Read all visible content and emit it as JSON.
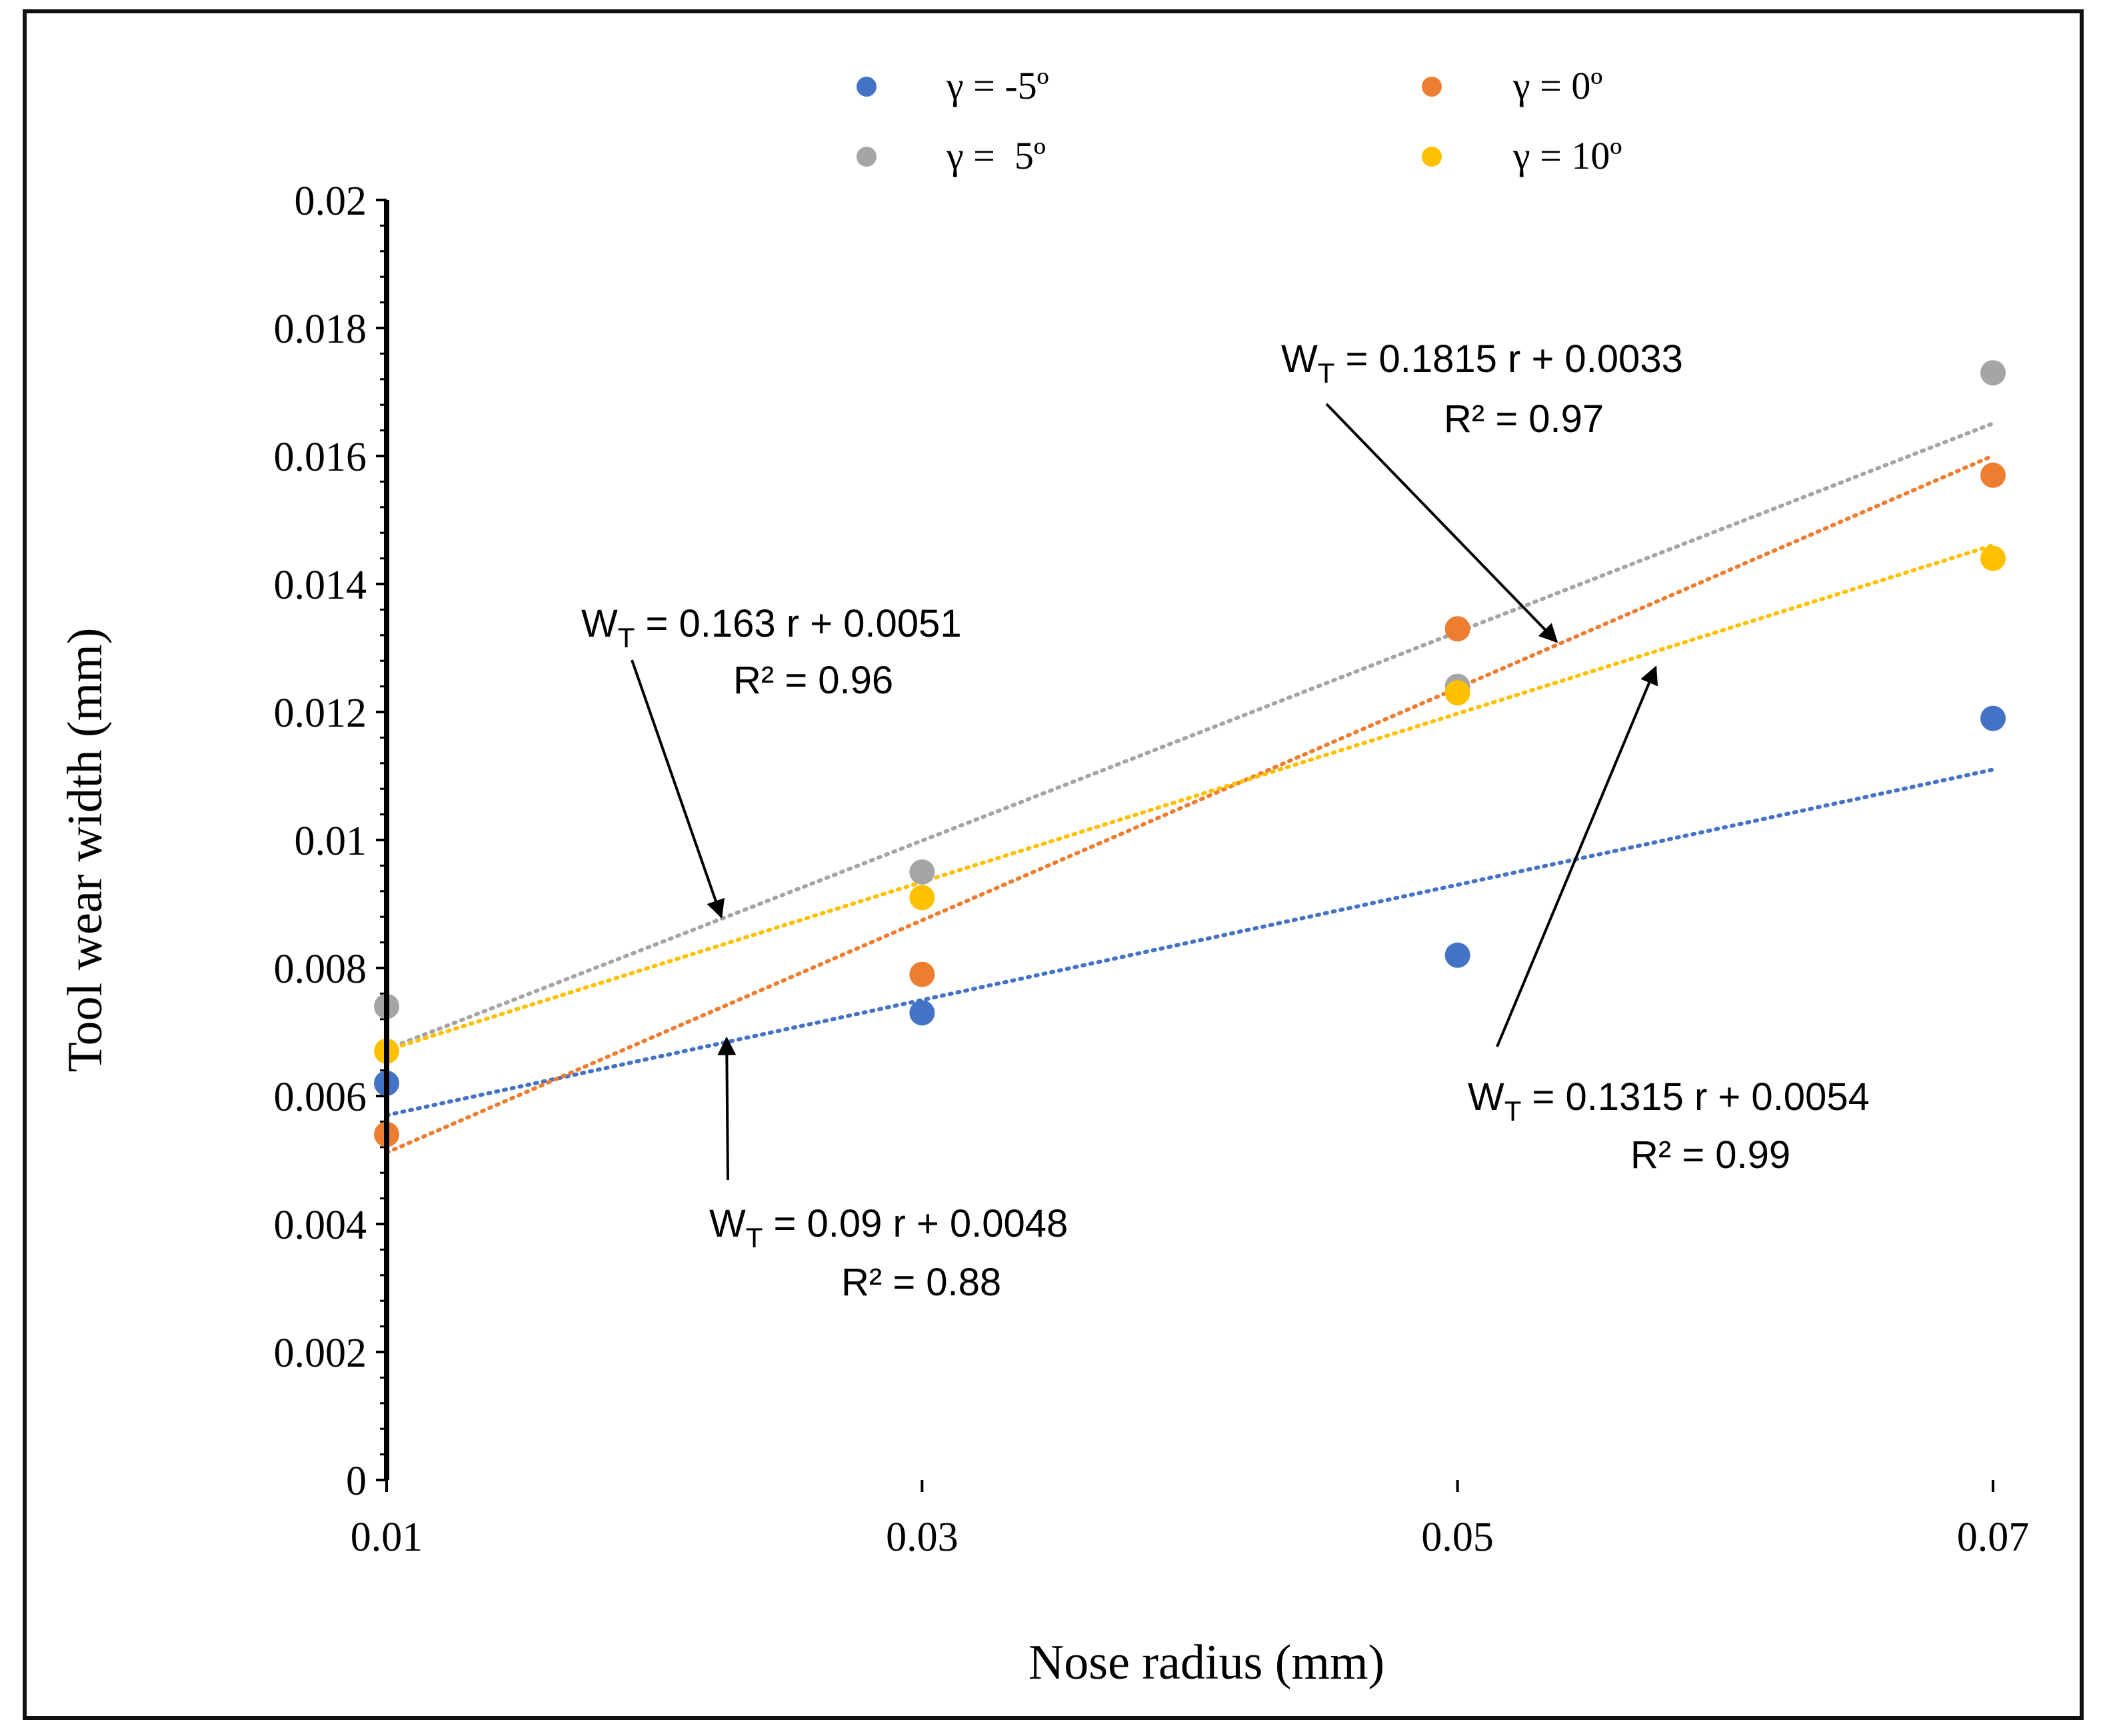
{
  "chart_data": {
    "type": "scatter",
    "title": "",
    "xlabel": "Nose radius (mm)",
    "ylabel": "Tool wear width (mm)",
    "xlim": [
      0.01,
      0.07
    ],
    "ylim": [
      0,
      0.02
    ],
    "x_ticks": [
      "0.01",
      "0.03",
      "0.05",
      "0.07"
    ],
    "y_ticks": [
      "0",
      "0.002",
      "0.004",
      "0.006",
      "0.008",
      "0.01",
      "0.012",
      "0.014",
      "0.016",
      "0.018",
      "0.02"
    ],
    "legend_position": "top",
    "x": [
      0.01,
      0.03,
      0.05,
      0.07
    ],
    "series": [
      {
        "name": "γ = -5º",
        "color": "#4472c4",
        "values": [
          0.0062,
          0.0073,
          0.0082,
          0.0119
        ],
        "trend": {
          "slope": 0.09,
          "intercept": 0.0048
        }
      },
      {
        "name": "γ = 0º",
        "color": "#ed7d31",
        "values": [
          0.0054,
          0.0079,
          0.0133,
          0.0157
        ],
        "trend": {
          "slope": 0.1815,
          "intercept": 0.0033
        }
      },
      {
        "name": "γ =  5º",
        "color": "#a5a5a5",
        "values": [
          0.0074,
          0.0095,
          0.0124,
          0.0173
        ],
        "trend": {
          "slope": 0.163,
          "intercept": 0.0051
        }
      },
      {
        "name": "γ = 10º",
        "color": "#ffc000",
        "values": [
          0.0067,
          0.0091,
          0.0123,
          0.0144
        ],
        "trend": {
          "slope": 0.1315,
          "intercept": 0.0054
        }
      }
    ],
    "annotations": [
      {
        "id": "ann-gray",
        "eq_main": "W",
        "eq_sub": "T",
        "eq_rest": " = 0.163 r + 0.0051",
        "r2": "R² = 0.96",
        "arrow_to": [
          0.0225,
          0.0088
        ]
      },
      {
        "id": "ann-orange",
        "eq_main": "W",
        "eq_sub": "T",
        "eq_rest": " = 0.1815 r + 0.0033",
        "r2": "R² = 0.97",
        "arrow_to": [
          0.0537,
          0.0131
        ]
      },
      {
        "id": "ann-blue",
        "eq_main": "W",
        "eq_sub": "T",
        "eq_rest": " = 0.09 r + 0.0048",
        "r2": "R² = 0.88",
        "arrow_to": [
          0.0227,
          0.0069
        ]
      },
      {
        "id": "ann-yellow",
        "eq_main": "W",
        "eq_sub": "T",
        "eq_rest": " = 0.1315 r + 0.0054",
        "r2": "R² = 0.99",
        "arrow_to": [
          0.0574,
          0.0127
        ]
      }
    ]
  }
}
